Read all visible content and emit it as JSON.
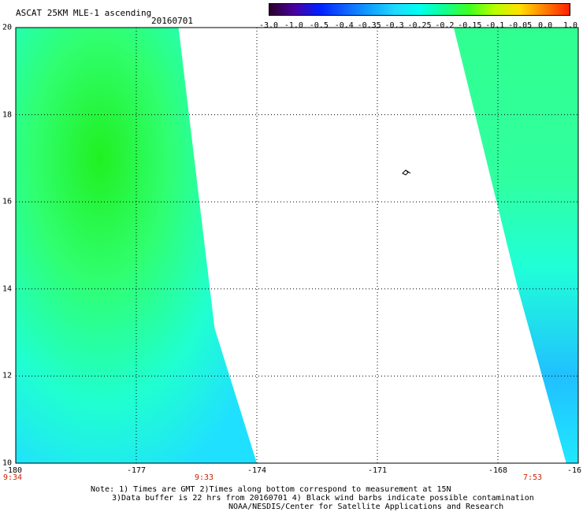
{
  "title": "ASCAT 25KM MLE-1 ascending",
  "date": "20160701",
  "colorbar": {
    "ticks": [
      "-3.0",
      "-1.0",
      "-0.5",
      "-0.4",
      "-0.35",
      "-0.3",
      "-0.25",
      "-0.2",
      "-0.15",
      "-0.1",
      "-0.05",
      "0.0",
      "1.0"
    ],
    "colors": [
      "#2a002a",
      "#4a00a0",
      "#0020ff",
      "#1060ff",
      "#10a0ff",
      "#20d8ff",
      "#00ffee",
      "#10ff90",
      "#40ff20",
      "#b8ff00",
      "#ffe000",
      "#ff8000",
      "#ff2000"
    ]
  },
  "lat_labels": [
    "20",
    "18",
    "16",
    "14",
    "12",
    "10"
  ],
  "lon_labels": [
    "-180",
    "-177",
    "-174",
    "-171",
    "-168",
    "-16"
  ],
  "time_labels": [
    "9:34",
    "9:33",
    "7:53"
  ],
  "notes": [
    "Note: 1) Times are GMT 2)Times along bottom correspond to measurement at 15N",
    "3)Data buffer is 22 hrs from 20160701 4) Black wind barbs indicate possible contamination",
    "NOAA/NESDIS/Center for Satellite Applications and Research"
  ],
  "swaths": [
    {
      "name": "west-swath",
      "left_edge": [
        [
          -180,
          20
        ],
        [
          -180,
          10
        ]
      ],
      "right_edge": [
        [
          -175.95,
          20
        ],
        [
          -175.05,
          13.1
        ],
        [
          -174,
          10
        ]
      ]
    },
    {
      "name": "east-swath",
      "left_edge": [
        [
          -169.1,
          20
        ],
        [
          -167.5,
          14
        ],
        [
          -166.3,
          10
        ]
      ],
      "right_edge": [
        [
          -166,
          20
        ],
        [
          -166,
          10
        ]
      ]
    }
  ],
  "map_extent": {
    "lon": [
      -180,
      -166
    ],
    "lat": [
      10,
      20
    ]
  }
}
